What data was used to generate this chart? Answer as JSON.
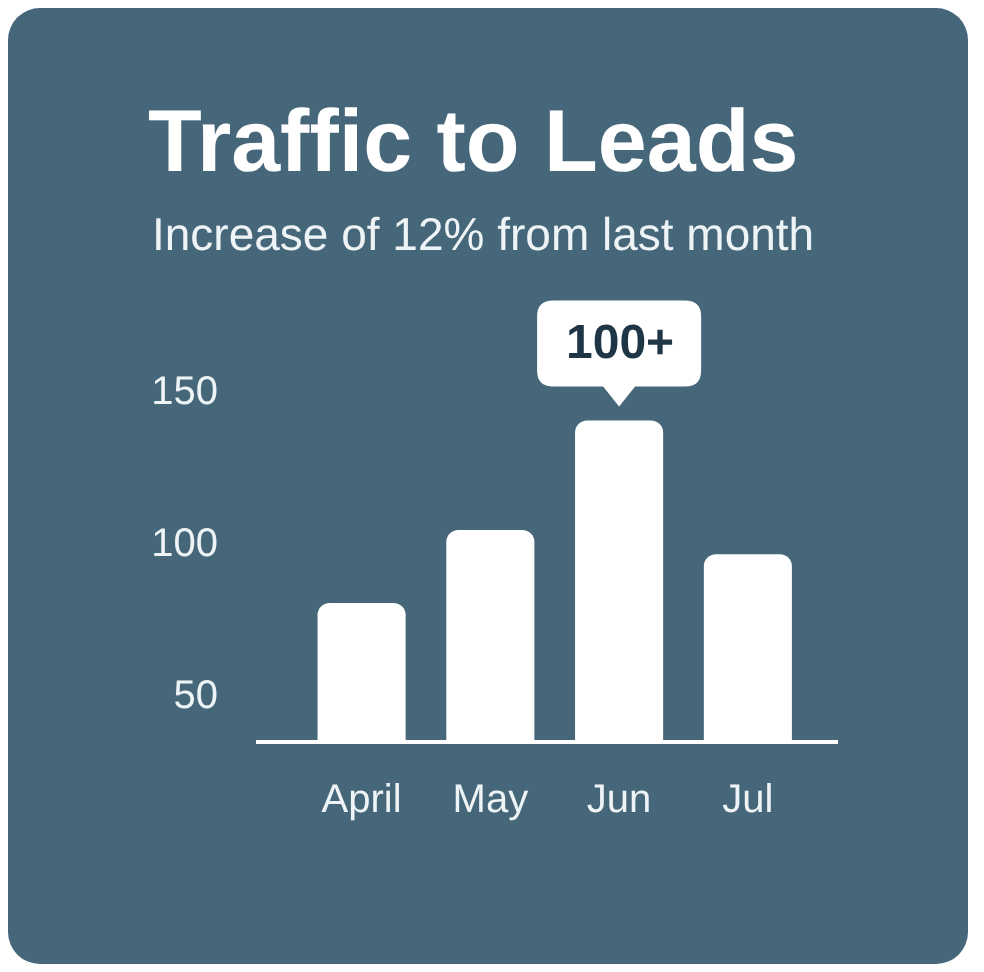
{
  "chart_data": {
    "type": "bar",
    "title": "Traffic to Leads",
    "subtitle": "Increase of 12% from last month",
    "categories": [
      "April",
      "May",
      "Jun",
      "Jul"
    ],
    "values": [
      80,
      104,
      140,
      96
    ],
    "color": "#ffffff",
    "ylim": [
      35,
      150
    ],
    "yticks": [
      50,
      100,
      150
    ],
    "annotations": [
      {
        "text": "100+",
        "x": "Jun",
        "y": 140
      }
    ]
  }
}
